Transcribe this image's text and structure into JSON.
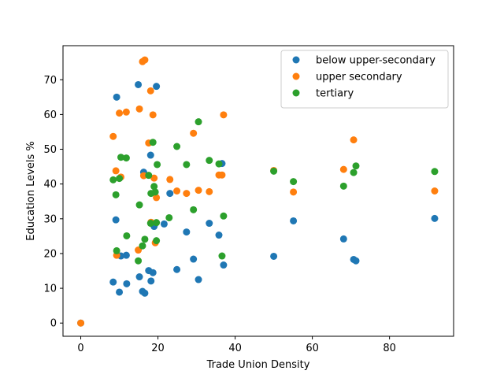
{
  "chart_data": {
    "type": "scatter",
    "title": "",
    "xlabel": "Trade Union Density",
    "ylabel": "Education Levels %",
    "xlim": [
      -4.6,
      96.6
    ],
    "ylim": [
      -3.8,
      79.8
    ],
    "xticks": [
      0,
      20,
      40,
      60,
      80
    ],
    "yticks": [
      0,
      10,
      20,
      30,
      40,
      50,
      60,
      70
    ],
    "grid": false,
    "legend_position": "top-right",
    "series": [
      {
        "name": "below upper-secondary",
        "color": "#1f77b4",
        "points": [
          [
            0,
            0
          ],
          [
            8.4,
            11.8
          ],
          [
            9.1,
            29.7
          ],
          [
            9.3,
            65.0
          ],
          [
            10.0,
            8.9
          ],
          [
            10.4,
            19.3
          ],
          [
            11.8,
            19.5
          ],
          [
            11.9,
            11.3
          ],
          [
            14.9,
            68.6
          ],
          [
            15.2,
            13.3
          ],
          [
            16.0,
            9.1
          ],
          [
            16.3,
            43.4
          ],
          [
            16.6,
            8.6
          ],
          [
            17.6,
            15.1
          ],
          [
            18.1,
            48.3
          ],
          [
            18.2,
            12.1
          ],
          [
            18.7,
            14.5
          ],
          [
            19.0,
            27.8
          ],
          [
            19.3,
            28.6
          ],
          [
            19.6,
            68.1
          ],
          [
            21.6,
            28.5
          ],
          [
            23.1,
            37.3
          ],
          [
            24.9,
            15.4
          ],
          [
            27.4,
            26.2
          ],
          [
            29.2,
            18.4
          ],
          [
            30.5,
            12.5
          ],
          [
            33.3,
            28.7
          ],
          [
            35.8,
            25.3
          ],
          [
            36.6,
            45.9
          ],
          [
            37.0,
            16.7
          ],
          [
            50.0,
            19.2
          ],
          [
            55.1,
            29.4
          ],
          [
            68.1,
            24.2
          ],
          [
            70.7,
            18.3
          ],
          [
            71.3,
            17.9
          ],
          [
            91.7,
            30.1
          ]
        ]
      },
      {
        "name": "upper secondary",
        "color": "#ff7f0e",
        "points": [
          [
            0,
            0
          ],
          [
            8.4,
            53.7
          ],
          [
            9.1,
            43.8
          ],
          [
            9.3,
            19.5
          ],
          [
            10.0,
            60.4
          ],
          [
            10.4,
            42.0
          ],
          [
            11.8,
            60.7
          ],
          [
            14.9,
            21.0
          ],
          [
            15.2,
            61.6
          ],
          [
            16.0,
            75.2
          ],
          [
            16.3,
            42.4
          ],
          [
            16.6,
            75.7
          ],
          [
            17.6,
            51.8
          ],
          [
            18.1,
            66.8
          ],
          [
            18.2,
            29.0
          ],
          [
            18.7,
            59.9
          ],
          [
            19.0,
            41.7
          ],
          [
            19.3,
            23.1
          ],
          [
            19.6,
            36.1
          ],
          [
            23.1,
            41.3
          ],
          [
            24.9,
            38.0
          ],
          [
            27.4,
            37.3
          ],
          [
            29.2,
            54.6
          ],
          [
            30.5,
            38.2
          ],
          [
            33.3,
            37.8
          ],
          [
            35.8,
            42.6
          ],
          [
            36.6,
            42.6
          ],
          [
            37.0,
            59.9
          ],
          [
            50.0,
            43.9
          ],
          [
            55.1,
            37.7
          ],
          [
            68.1,
            44.2
          ],
          [
            70.7,
            52.7
          ],
          [
            91.7,
            38.0
          ]
        ]
      },
      {
        "name": "tertiary",
        "color": "#2ca02c",
        "points": [
          [
            8.4,
            41.2
          ],
          [
            9.1,
            36.9
          ],
          [
            9.3,
            20.8
          ],
          [
            10.0,
            41.6
          ],
          [
            10.4,
            47.7
          ],
          [
            11.8,
            47.5
          ],
          [
            11.9,
            25.1
          ],
          [
            14.9,
            17.9
          ],
          [
            15.2,
            34.0
          ],
          [
            16.0,
            22.2
          ],
          [
            16.6,
            24.1
          ],
          [
            17.6,
            42.5
          ],
          [
            18.1,
            28.7
          ],
          [
            18.2,
            37.3
          ],
          [
            18.7,
            52.0
          ],
          [
            19.0,
            39.3
          ],
          [
            19.3,
            37.7
          ],
          [
            19.6,
            28.9
          ],
          [
            19.8,
            45.6
          ],
          [
            19.6,
            23.7
          ],
          [
            22.9,
            30.3
          ],
          [
            24.9,
            50.8
          ],
          [
            27.4,
            45.6
          ],
          [
            29.2,
            32.6
          ],
          [
            30.5,
            57.9
          ],
          [
            33.3,
            46.8
          ],
          [
            35.8,
            45.8
          ],
          [
            36.6,
            19.3
          ],
          [
            37.0,
            30.8
          ],
          [
            50.0,
            43.7
          ],
          [
            55.1,
            40.7
          ],
          [
            68.1,
            39.4
          ],
          [
            70.7,
            43.3
          ],
          [
            71.3,
            45.2
          ],
          [
            91.7,
            43.6
          ]
        ]
      }
    ]
  }
}
